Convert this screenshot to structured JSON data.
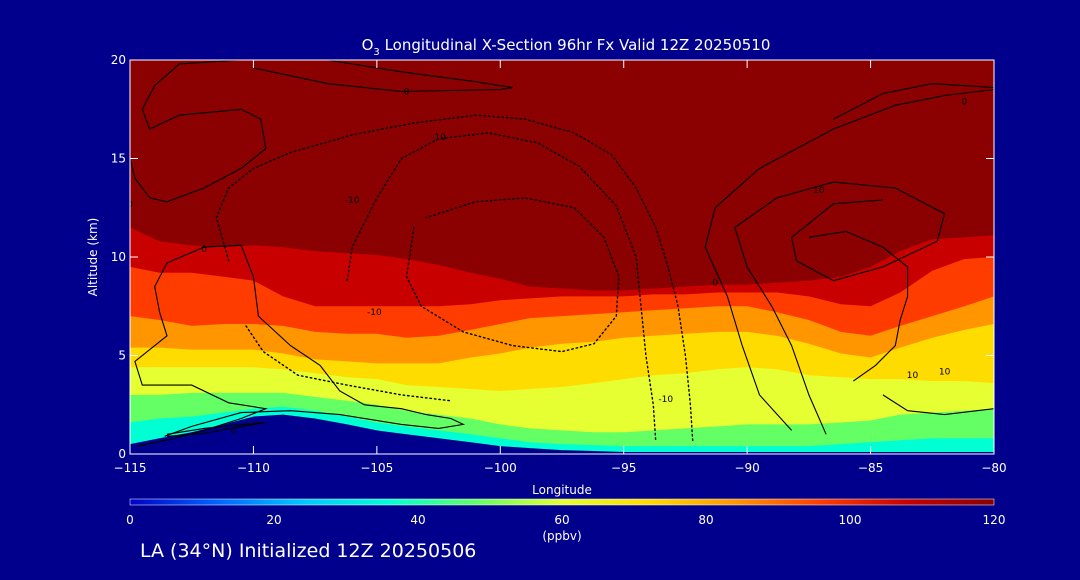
{
  "chart_data": {
    "type": "heatmap",
    "title_prefix": "O",
    "title_subscript": "3",
    "title_suffix": " Longitudinal X-Section 96hr  Fx Valid 12Z 20250510",
    "xlabel": "Longitude",
    "ylabel": "Altitude (km)",
    "xlim": [
      -115,
      -80
    ],
    "ylim": [
      0,
      20
    ],
    "x_ticks": [
      -115,
      -110,
      -105,
      -100,
      -95,
      -90,
      -85,
      -80
    ],
    "x_tick_labels": [
      "−115",
      "−110",
      "−105",
      "−100",
      "−95",
      "−90",
      "−85",
      "−80"
    ],
    "y_ticks": [
      0,
      5,
      10,
      15,
      20
    ],
    "y_tick_labels": [
      "0",
      "5",
      "10",
      "15",
      "20"
    ],
    "colorbar": {
      "range": [
        0,
        120
      ],
      "ticks": [
        0,
        20,
        40,
        60,
        80,
        100,
        120
      ],
      "tick_labels": [
        "0",
        "20",
        "40",
        "60",
        "80",
        "100",
        "120"
      ],
      "unit_label": "(ppbv)",
      "colors": [
        "#0000c8",
        "#0064ff",
        "#00c8ff",
        "#00ffd2",
        "#64ff64",
        "#e6ff32",
        "#ffdc00",
        "#ff9600",
        "#ff3c00",
        "#c80000",
        "#8b0000"
      ]
    },
    "profile_longitudes": [
      -115,
      -113.8,
      -112.5,
      -111.2,
      -110,
      -108.8,
      -107.5,
      -106.2,
      -105,
      -103.8,
      -102.5,
      -101.2,
      -100,
      -98.8,
      -97.5,
      -96.2,
      -95,
      -93.8,
      -92.5,
      -91.2,
      -90,
      -88.8,
      -87.5,
      -86.2,
      -85,
      -83.8,
      -82.5,
      -81.2,
      -80
    ],
    "terrain_km": [
      0.5,
      0.8,
      1.1,
      1.5,
      1.9,
      2.0,
      1.8,
      1.5,
      1.2,
      1.0,
      0.8,
      0.6,
      0.4,
      0.3,
      0.2,
      0.15,
      0.1,
      0.1,
      0.1,
      0.1,
      0.1,
      0.1,
      0.1,
      0.1,
      0.1,
      0.1,
      0.1,
      0.1,
      0.1
    ],
    "stratosphere_base_km": [
      11.5,
      10.8,
      10.6,
      10.5,
      10.6,
      10.5,
      10.3,
      10.2,
      10.1,
      9.9,
      9.6,
      9.2,
      8.9,
      8.5,
      8.4,
      8.3,
      8.3,
      8.4,
      8.5,
      8.6,
      8.6,
      8.7,
      8.8,
      9.0,
      9.5,
      10.3,
      10.9,
      11.0,
      11.1
    ],
    "bands": [
      {
        "value": 100,
        "heights": [
          9.5,
          9.2,
          9.2,
          9.0,
          8.8,
          8.0,
          7.5,
          7.5,
          7.5,
          7.5,
          7.5,
          7.6,
          7.8,
          7.9,
          8.0,
          8.0,
          8.0,
          8.1,
          8.1,
          8.2,
          8.2,
          8.2,
          8.0,
          7.6,
          7.5,
          8.2,
          9.3,
          9.9,
          10.0
        ]
      },
      {
        "value": 90,
        "heights": [
          8.0,
          7.8,
          6.8,
          7.2,
          7.4,
          7.0,
          6.9,
          7.0,
          7.0,
          7.0,
          7.0,
          7.3,
          7.5,
          7.6,
          7.7,
          7.7,
          7.8,
          7.8,
          7.8,
          7.9,
          7.9,
          7.8,
          7.3,
          6.8,
          6.5,
          7.5,
          8.5,
          9.2,
          9.5
        ]
      },
      {
        "value": 80,
        "heights": [
          7.0,
          6.8,
          6.5,
          6.6,
          6.6,
          6.5,
          6.2,
          6.1,
          6.1,
          5.9,
          6.0,
          6.3,
          6.6,
          6.9,
          7.0,
          7.1,
          7.2,
          7.3,
          7.4,
          7.5,
          7.5,
          7.2,
          6.8,
          6.2,
          6.0,
          6.5,
          7.0,
          7.5,
          8.0
        ]
      },
      {
        "value": 70,
        "heights": [
          5.4,
          5.4,
          5.3,
          5.3,
          5.3,
          5.1,
          4.8,
          4.7,
          4.6,
          4.6,
          4.6,
          4.9,
          5.1,
          5.4,
          5.6,
          5.7,
          5.9,
          6.0,
          6.1,
          6.2,
          6.2,
          6.0,
          5.6,
          5.1,
          4.9,
          5.4,
          5.9,
          6.3,
          6.6
        ]
      },
      {
        "value": 60,
        "heights": [
          4.4,
          4.4,
          4.4,
          4.4,
          4.4,
          4.3,
          4.1,
          3.9,
          3.8,
          3.5,
          3.4,
          3.3,
          3.2,
          3.3,
          3.4,
          3.6,
          3.8,
          4.0,
          4.1,
          4.3,
          4.4,
          4.3,
          4.0,
          3.9,
          3.8,
          3.8,
          3.7,
          3.7,
          3.6
        ]
      },
      {
        "value": 50,
        "heights": [
          3.0,
          3.0,
          3.1,
          3.1,
          3.1,
          3.1,
          2.9,
          2.7,
          2.5,
          2.2,
          2.0,
          1.8,
          1.5,
          1.3,
          1.2,
          1.1,
          1.1,
          1.2,
          1.3,
          1.4,
          1.5,
          1.5,
          1.5,
          1.6,
          1.7,
          2.0,
          2.1,
          2.2,
          2.3
        ]
      },
      {
        "value": 40,
        "heights": [
          1.6,
          1.8,
          1.9,
          2.1,
          2.3,
          2.4,
          2.2,
          1.9,
          1.6,
          1.4,
          1.2,
          1.0,
          0.8,
          0.6,
          0.5,
          0.45,
          0.4,
          0.4,
          0.4,
          0.4,
          0.4,
          0.4,
          0.4,
          0.5,
          0.6,
          0.7,
          0.8,
          0.8,
          0.8
        ]
      }
    ],
    "contours": [
      {
        "label": "0",
        "label_at": [
          -115,
          12.7
        ],
        "dashed": false,
        "points": [
          [
            -115,
            15
          ],
          [
            -114.8,
            14
          ],
          [
            -114.2,
            13
          ],
          [
            -113.5,
            12.8
          ],
          [
            -112,
            13.5
          ],
          [
            -110.5,
            14.5
          ],
          [
            -109.5,
            15.5
          ],
          [
            -109.7,
            17
          ],
          [
            -110.5,
            17.5
          ],
          [
            -113,
            17.2
          ],
          [
            -114.2,
            16.5
          ],
          [
            -114.5,
            17.5
          ],
          [
            -114,
            18.7
          ],
          [
            -113,
            19.8
          ],
          [
            -110.5,
            20
          ]
        ]
      },
      {
        "label": "0",
        "label_at": [
          -103.8,
          18.4
        ],
        "dashed": false,
        "points": [
          [
            -110,
            19.6
          ],
          [
            -107,
            18.8
          ],
          [
            -104,
            18.4
          ],
          [
            -100,
            18.5
          ],
          [
            -99.5,
            18.6
          ],
          [
            -101,
            18.9
          ],
          [
            -104,
            19.4
          ],
          [
            -107,
            20
          ]
        ]
      },
      {
        "label": "0",
        "label_at": [
          -112,
          10.4
        ],
        "dashed": false,
        "points": [
          [
            -114.7,
            0.4
          ],
          [
            -113.5,
            0.7
          ],
          [
            -112,
            1.2
          ],
          [
            -110.5,
            1.8
          ],
          [
            -109.5,
            2.3
          ],
          [
            -111,
            2.6
          ],
          [
            -112.5,
            3.5
          ],
          [
            -114.5,
            3.5
          ],
          [
            -114.8,
            4.7
          ],
          [
            -113.5,
            6
          ],
          [
            -113.8,
            7.2
          ],
          [
            -114,
            8.5
          ],
          [
            -113.5,
            9.7
          ],
          [
            -112,
            10.5
          ],
          [
            -110.5,
            10.6
          ],
          [
            -110,
            9
          ],
          [
            -109.8,
            7
          ],
          [
            -108.5,
            5.5
          ],
          [
            -107.3,
            4.5
          ],
          [
            -106.5,
            3.2
          ],
          [
            -105.5,
            2.5
          ],
          [
            -104,
            2.3
          ],
          [
            -103,
            2
          ],
          [
            -102,
            1.8
          ],
          [
            -101.5,
            1.5
          ],
          [
            -102.5,
            1.3
          ],
          [
            -104,
            1.5
          ],
          [
            -106.5,
            2
          ],
          [
            -108.5,
            2.2
          ],
          [
            -110.5,
            2.1
          ],
          [
            -112.5,
            1.4
          ],
          [
            -113.6,
            0.9
          ]
        ]
      },
      {
        "label": "0",
        "label_at": [
          -110.8,
          1.2
        ],
        "dashed": false,
        "points": [
          [
            -113.5,
            1
          ],
          [
            -112,
            1.3
          ],
          [
            -110.5,
            1.5
          ],
          [
            -109.5,
            1.6
          ],
          [
            -110.5,
            1.4
          ],
          [
            -112,
            1.05
          ],
          [
            -113.5,
            0.9
          ]
        ]
      },
      {
        "label": "0",
        "label_at": [
          -91.3,
          8.7
        ],
        "dashed": false,
        "points": [
          [
            -88.2,
            1.2
          ],
          [
            -89.5,
            3
          ],
          [
            -90.2,
            5.5
          ],
          [
            -90.8,
            8
          ],
          [
            -91.7,
            10.5
          ],
          [
            -91.3,
            12.5
          ],
          [
            -89.5,
            14.5
          ],
          [
            -86.5,
            16.5
          ],
          [
            -84,
            17.7
          ],
          [
            -82,
            18.2
          ],
          [
            -80,
            18.5
          ]
        ]
      },
      {
        "label": "0",
        "label_at": [
          -81.2,
          17.9
        ],
        "dashed": false,
        "points": [
          [
            -86.5,
            17
          ],
          [
            -84.5,
            18.3
          ],
          [
            -82.5,
            18.8
          ],
          [
            -80,
            18.6
          ]
        ]
      },
      {
        "label": "10",
        "label_at": [
          -87.1,
          13.4
        ],
        "dashed": false,
        "points": [
          [
            -86.8,
            1.0
          ],
          [
            -87.5,
            3
          ],
          [
            -88.2,
            5.5
          ],
          [
            -89,
            7.5
          ],
          [
            -90,
            9.5
          ],
          [
            -90.5,
            11.5
          ],
          [
            -88.8,
            13
          ],
          [
            -86.5,
            13.8
          ],
          [
            -84,
            13.5
          ],
          [
            -82,
            12.2
          ],
          [
            -82.3,
            10.8
          ],
          [
            -84.5,
            9.5
          ],
          [
            -86.5,
            8.8
          ],
          [
            -88,
            9.8
          ],
          [
            -88.2,
            11
          ],
          [
            -86.5,
            12.7
          ],
          [
            -84.5,
            12.9
          ]
        ]
      },
      {
        "label": "10",
        "label_at": [
          -83.3,
          4.0
        ],
        "dashed": false,
        "points": [
          [
            -85.7,
            3.7
          ],
          [
            -84.8,
            4.5
          ],
          [
            -84,
            5.5
          ],
          [
            -83.8,
            6.8
          ],
          [
            -83.5,
            8
          ],
          [
            -83.5,
            9.5
          ],
          [
            -84.5,
            10.5
          ],
          [
            -86,
            11.3
          ],
          [
            -87.5,
            11
          ]
        ]
      },
      {
        "label": "10",
        "label_at": [
          -82,
          4.2
        ],
        "dashed": false,
        "points": [
          [
            -84.5,
            3
          ],
          [
            -83.5,
            2.2
          ],
          [
            -82,
            2
          ],
          [
            -80,
            2.3
          ]
        ]
      },
      {
        "label": "-10",
        "label_at": [
          -102.5,
          16.1
        ],
        "dashed": true,
        "points": [
          [
            -111,
            9.8
          ],
          [
            -111.5,
            12
          ],
          [
            -111,
            13.5
          ],
          [
            -110,
            14.5
          ],
          [
            -108.5,
            15.3
          ],
          [
            -106,
            16.2
          ],
          [
            -103.5,
            16.8
          ],
          [
            -101,
            17.2
          ],
          [
            -99,
            17
          ],
          [
            -97,
            16.3
          ],
          [
            -95.5,
            15.2
          ],
          [
            -94.5,
            13.5
          ],
          [
            -93.7,
            11.5
          ],
          [
            -93.2,
            9.5
          ],
          [
            -92.8,
            7.5
          ],
          [
            -92.5,
            5
          ],
          [
            -92.3,
            2.5
          ],
          [
            -92.2,
            0.6
          ]
        ]
      },
      {
        "label": "-10",
        "label_at": [
          -105.1,
          7.2
        ],
        "dashed": true,
        "points": [
          [
            -106.2,
            8.8
          ],
          [
            -106,
            10.5
          ],
          [
            -105,
            13
          ],
          [
            -104,
            15
          ],
          [
            -102.5,
            16
          ],
          [
            -100.5,
            16.3
          ],
          [
            -98.5,
            15.8
          ],
          [
            -96.8,
            14.6
          ],
          [
            -95.3,
            12.6
          ],
          [
            -94.5,
            10
          ],
          [
            -94.3,
            7.5
          ],
          [
            -94.1,
            5
          ],
          [
            -93.8,
            2.5
          ],
          [
            -93.7,
            0.6
          ]
        ]
      },
      {
        "label": "-10",
        "label_at": [
          -93.3,
          2.8
        ],
        "dashed": true,
        "points": [
          [
            -103.5,
            11.5
          ],
          [
            -103.8,
            9
          ],
          [
            -103.2,
            7.5
          ],
          [
            -101.5,
            6.2
          ],
          [
            -99.5,
            5.5
          ],
          [
            -97.5,
            5.2
          ],
          [
            -96.2,
            5.6
          ],
          [
            -95.3,
            7
          ],
          [
            -95.2,
            9
          ],
          [
            -95.8,
            11
          ],
          [
            -97,
            12.5
          ],
          [
            -99,
            13
          ],
          [
            -101,
            12.8
          ],
          [
            -103,
            12
          ]
        ]
      },
      {
        "label": "-10",
        "label_at": [
          -106,
          12.9
        ],
        "dashed": true,
        "points": [
          [
            -110.3,
            6.5
          ],
          [
            -109.6,
            5.2
          ],
          [
            -108.2,
            4
          ],
          [
            -106.2,
            3.5
          ],
          [
            -104,
            3
          ],
          [
            -102,
            2.7
          ]
        ]
      }
    ],
    "footer": "LA (34°N) Initialized 12Z 20250506"
  }
}
